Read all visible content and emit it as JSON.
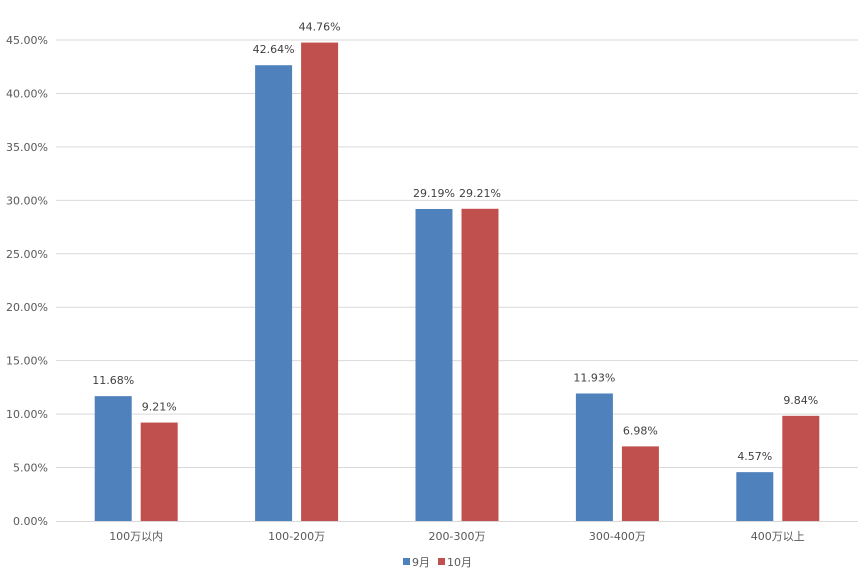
{
  "chart_data": {
    "type": "bar",
    "categories": [
      "100万以内",
      "100-200万",
      "200-300万",
      "300-400万",
      "400万以上"
    ],
    "series": [
      {
        "name": "9月",
        "color": "#4F81BD",
        "values": [
          11.68,
          42.64,
          29.19,
          11.93,
          4.57
        ]
      },
      {
        "name": "10月",
        "color": "#C0504D",
        "values": [
          9.21,
          44.76,
          29.21,
          6.98,
          9.84
        ]
      }
    ],
    "data_labels": [
      [
        "11.68%",
        "42.64%",
        "29.19%",
        "11.93%",
        "4.57%"
      ],
      [
        "9.21%",
        "44.76%",
        "29.21%",
        "6.98%",
        "9.84%"
      ]
    ],
    "ylim": [
      0,
      45
    ],
    "yticks": [
      0,
      5,
      10,
      15,
      20,
      25,
      30,
      35,
      40,
      45
    ],
    "ytick_labels": [
      "0.00%",
      "5.00%",
      "10.00%",
      "15.00%",
      "20.00%",
      "25.00%",
      "30.00%",
      "35.00%",
      "40.00%",
      "45.00%"
    ],
    "grid": true,
    "legend_position": "bottom"
  }
}
